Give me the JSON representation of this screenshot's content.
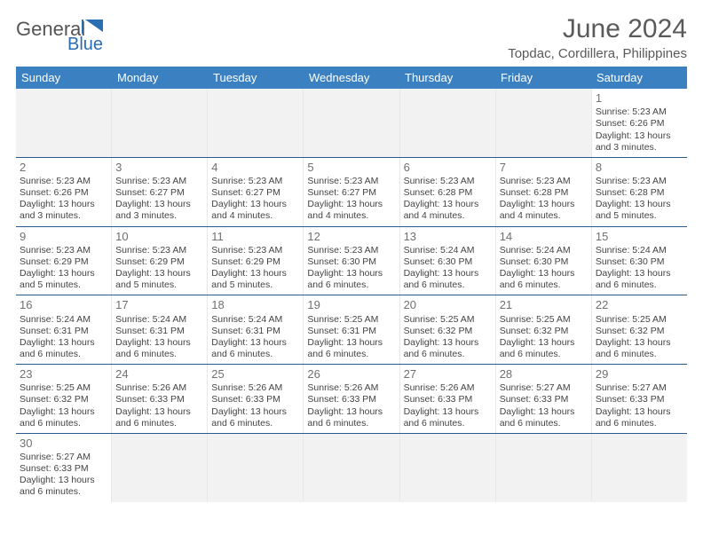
{
  "logo": {
    "text1": "General",
    "text2": "Blue"
  },
  "title": "June 2024",
  "subtitle": "Topdac, Cordillera, Philippines",
  "colors": {
    "header_bg": "#3b81c2",
    "header_text": "#ffffff",
    "week_border": "#2a5a8a",
    "empty_cell": "#f2f2f2",
    "title_color": "#5a5a5a",
    "logo_blue": "#2a6db0"
  },
  "dayHeaders": [
    "Sunday",
    "Monday",
    "Tuesday",
    "Wednesday",
    "Thursday",
    "Friday",
    "Saturday"
  ],
  "weeks": [
    [
      null,
      null,
      null,
      null,
      null,
      null,
      {
        "n": "1",
        "sr": "5:23 AM",
        "ss": "6:26 PM",
        "dl": "13 hours and 3 minutes."
      }
    ],
    [
      {
        "n": "2",
        "sr": "5:23 AM",
        "ss": "6:26 PM",
        "dl": "13 hours and 3 minutes."
      },
      {
        "n": "3",
        "sr": "5:23 AM",
        "ss": "6:27 PM",
        "dl": "13 hours and 3 minutes."
      },
      {
        "n": "4",
        "sr": "5:23 AM",
        "ss": "6:27 PM",
        "dl": "13 hours and 4 minutes."
      },
      {
        "n": "5",
        "sr": "5:23 AM",
        "ss": "6:27 PM",
        "dl": "13 hours and 4 minutes."
      },
      {
        "n": "6",
        "sr": "5:23 AM",
        "ss": "6:28 PM",
        "dl": "13 hours and 4 minutes."
      },
      {
        "n": "7",
        "sr": "5:23 AM",
        "ss": "6:28 PM",
        "dl": "13 hours and 4 minutes."
      },
      {
        "n": "8",
        "sr": "5:23 AM",
        "ss": "6:28 PM",
        "dl": "13 hours and 5 minutes."
      }
    ],
    [
      {
        "n": "9",
        "sr": "5:23 AM",
        "ss": "6:29 PM",
        "dl": "13 hours and 5 minutes."
      },
      {
        "n": "10",
        "sr": "5:23 AM",
        "ss": "6:29 PM",
        "dl": "13 hours and 5 minutes."
      },
      {
        "n": "11",
        "sr": "5:23 AM",
        "ss": "6:29 PM",
        "dl": "13 hours and 5 minutes."
      },
      {
        "n": "12",
        "sr": "5:23 AM",
        "ss": "6:30 PM",
        "dl": "13 hours and 6 minutes."
      },
      {
        "n": "13",
        "sr": "5:24 AM",
        "ss": "6:30 PM",
        "dl": "13 hours and 6 minutes."
      },
      {
        "n": "14",
        "sr": "5:24 AM",
        "ss": "6:30 PM",
        "dl": "13 hours and 6 minutes."
      },
      {
        "n": "15",
        "sr": "5:24 AM",
        "ss": "6:30 PM",
        "dl": "13 hours and 6 minutes."
      }
    ],
    [
      {
        "n": "16",
        "sr": "5:24 AM",
        "ss": "6:31 PM",
        "dl": "13 hours and 6 minutes."
      },
      {
        "n": "17",
        "sr": "5:24 AM",
        "ss": "6:31 PM",
        "dl": "13 hours and 6 minutes."
      },
      {
        "n": "18",
        "sr": "5:24 AM",
        "ss": "6:31 PM",
        "dl": "13 hours and 6 minutes."
      },
      {
        "n": "19",
        "sr": "5:25 AM",
        "ss": "6:31 PM",
        "dl": "13 hours and 6 minutes."
      },
      {
        "n": "20",
        "sr": "5:25 AM",
        "ss": "6:32 PM",
        "dl": "13 hours and 6 minutes."
      },
      {
        "n": "21",
        "sr": "5:25 AM",
        "ss": "6:32 PM",
        "dl": "13 hours and 6 minutes."
      },
      {
        "n": "22",
        "sr": "5:25 AM",
        "ss": "6:32 PM",
        "dl": "13 hours and 6 minutes."
      }
    ],
    [
      {
        "n": "23",
        "sr": "5:25 AM",
        "ss": "6:32 PM",
        "dl": "13 hours and 6 minutes."
      },
      {
        "n": "24",
        "sr": "5:26 AM",
        "ss": "6:33 PM",
        "dl": "13 hours and 6 minutes."
      },
      {
        "n": "25",
        "sr": "5:26 AM",
        "ss": "6:33 PM",
        "dl": "13 hours and 6 minutes."
      },
      {
        "n": "26",
        "sr": "5:26 AM",
        "ss": "6:33 PM",
        "dl": "13 hours and 6 minutes."
      },
      {
        "n": "27",
        "sr": "5:26 AM",
        "ss": "6:33 PM",
        "dl": "13 hours and 6 minutes."
      },
      {
        "n": "28",
        "sr": "5:27 AM",
        "ss": "6:33 PM",
        "dl": "13 hours and 6 minutes."
      },
      {
        "n": "29",
        "sr": "5:27 AM",
        "ss": "6:33 PM",
        "dl": "13 hours and 6 minutes."
      }
    ],
    [
      {
        "n": "30",
        "sr": "5:27 AM",
        "ss": "6:33 PM",
        "dl": "13 hours and 6 minutes."
      },
      null,
      null,
      null,
      null,
      null,
      null
    ]
  ],
  "labels": {
    "sunrise": "Sunrise:",
    "sunset": "Sunset:",
    "daylight": "Daylight:"
  }
}
